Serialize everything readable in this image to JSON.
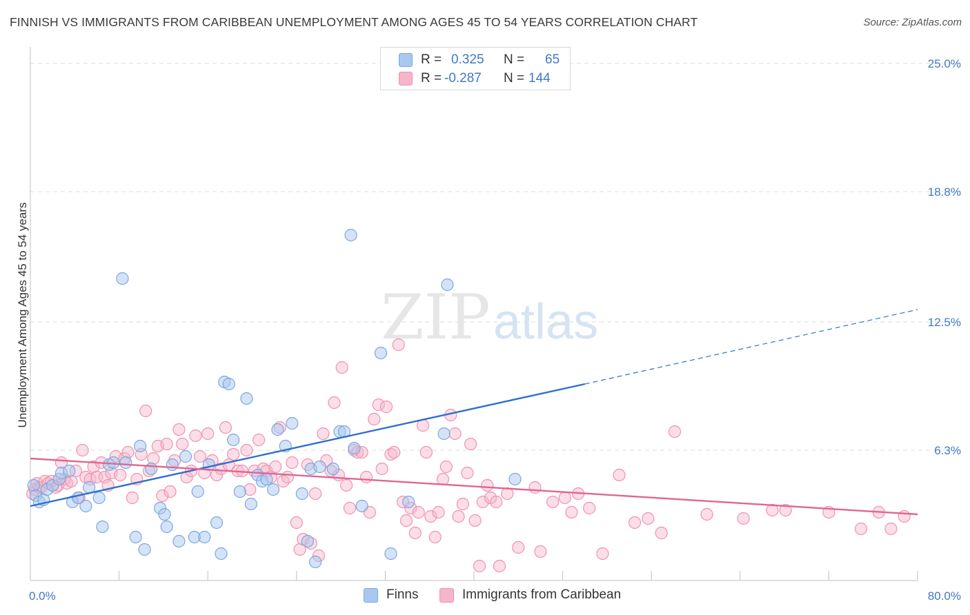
{
  "header": {
    "title": "FINNISH VS IMMIGRANTS FROM CARIBBEAN UNEMPLOYMENT AMONG AGES 45 TO 54 YEARS CORRELATION CHART",
    "source": "Source: ZipAtlas.com"
  },
  "legend": {
    "finns": {
      "r_label": "R =",
      "r_value": "0.325",
      "n_label": "N =",
      "n_value": "65"
    },
    "caribbean": {
      "r_label": "R =",
      "r_value": "-0.287",
      "n_label": "N =",
      "n_value": "144"
    }
  },
  "bottom_legend": {
    "finns": "Finns",
    "caribbean": "Immigrants from Caribbean"
  },
  "watermark": {
    "zip": "ZIP",
    "atlas": "atlas"
  },
  "colors": {
    "finns_fill": "#a9c8f0",
    "finns_stroke": "#7aa7df",
    "finns_line": "#2f6fce",
    "caribbean_fill": "#f6b6c9",
    "caribbean_stroke": "#ef91ae",
    "caribbean_line": "#e26492",
    "tick_text": "#3f78c9",
    "grid": "#dcdcdc"
  },
  "chart_data": {
    "type": "scatter",
    "title": "FINNISH VS IMMIGRANTS FROM CARIBBEAN UNEMPLOYMENT AMONG AGES 45 TO 54 YEARS CORRELATION CHART",
    "xlabel": "",
    "ylabel": "Unemployment Among Ages 45 to 54 years",
    "xlim": [
      0,
      80
    ],
    "ylim": [
      0,
      25.8
    ],
    "x_tick_labels": [
      "0.0%",
      "80.0%"
    ],
    "y_ticks": [
      6.3,
      12.5,
      18.8,
      25.0
    ],
    "y_tick_labels": [
      "6.3%",
      "12.5%",
      "18.8%",
      "25.0%"
    ],
    "grid": true,
    "legend_position": "top-center",
    "series": [
      {
        "name": "Finns",
        "r": 0.325,
        "n": 65,
        "trend": {
          "x0": 0,
          "y0": 3.6,
          "x1": 50,
          "y1": 9.5,
          "dashed_to_x": 80,
          "dashed_to_y": 13.1
        },
        "points": [
          [
            0.3,
            4.6
          ],
          [
            0.5,
            4.1
          ],
          [
            0.8,
            3.8
          ],
          [
            1.2,
            3.9
          ],
          [
            1.5,
            4.4
          ],
          [
            2.0,
            4.6
          ],
          [
            2.6,
            4.9
          ],
          [
            2.8,
            5.2
          ],
          [
            3.5,
            5.3
          ],
          [
            3.8,
            3.8
          ],
          [
            4.3,
            4.0
          ],
          [
            5.0,
            3.6
          ],
          [
            5.3,
            4.5
          ],
          [
            6.2,
            4.0
          ],
          [
            6.5,
            2.6
          ],
          [
            7.1,
            5.6
          ],
          [
            7.5,
            5.7
          ],
          [
            8.3,
            14.6
          ],
          [
            8.6,
            5.7
          ],
          [
            9.5,
            2.1
          ],
          [
            9.9,
            6.5
          ],
          [
            10.3,
            1.5
          ],
          [
            10.9,
            5.4
          ],
          [
            11.7,
            3.5
          ],
          [
            12.1,
            3.2
          ],
          [
            12.3,
            2.6
          ],
          [
            12.8,
            5.6
          ],
          [
            13.4,
            1.9
          ],
          [
            14.0,
            6.0
          ],
          [
            14.8,
            2.1
          ],
          [
            15.1,
            4.3
          ],
          [
            15.7,
            2.1
          ],
          [
            16.1,
            5.6
          ],
          [
            16.8,
            2.8
          ],
          [
            17.2,
            1.3
          ],
          [
            17.5,
            9.6
          ],
          [
            17.9,
            9.5
          ],
          [
            18.3,
            6.8
          ],
          [
            18.9,
            4.3
          ],
          [
            19.5,
            8.8
          ],
          [
            19.9,
            3.7
          ],
          [
            20.5,
            5.1
          ],
          [
            20.9,
            4.8
          ],
          [
            21.3,
            4.9
          ],
          [
            21.9,
            4.4
          ],
          [
            22.3,
            7.3
          ],
          [
            23.0,
            6.5
          ],
          [
            23.6,
            7.6
          ],
          [
            24.5,
            4.2
          ],
          [
            25.0,
            1.9
          ],
          [
            25.3,
            5.4
          ],
          [
            25.7,
            0.9
          ],
          [
            26.1,
            5.5
          ],
          [
            27.3,
            5.4
          ],
          [
            27.9,
            7.2
          ],
          [
            28.3,
            7.2
          ],
          [
            28.9,
            16.7
          ],
          [
            29.2,
            6.4
          ],
          [
            29.9,
            3.6
          ],
          [
            31.6,
            11.0
          ],
          [
            32.5,
            1.3
          ],
          [
            34.1,
            3.8
          ],
          [
            37.3,
            7.1
          ],
          [
            37.6,
            14.3
          ],
          [
            43.7,
            4.9
          ]
        ]
      },
      {
        "name": "Immigrants from Caribbean",
        "r": -0.287,
        "n": 144,
        "trend": {
          "x0": 0,
          "y0": 5.9,
          "x1": 80,
          "y1": 3.2
        },
        "points": [
          [
            0.2,
            4.2
          ],
          [
            0.4,
            4.4
          ],
          [
            0.6,
            4.7
          ],
          [
            0.8,
            4.5
          ],
          [
            1.0,
            4.5
          ],
          [
            1.3,
            4.8
          ],
          [
            1.6,
            4.7
          ],
          [
            1.9,
            4.8
          ],
          [
            2.3,
            4.5
          ],
          [
            2.5,
            4.6
          ],
          [
            2.8,
            5.7
          ],
          [
            3.1,
            4.9
          ],
          [
            3.3,
            4.7
          ],
          [
            3.7,
            4.8
          ],
          [
            4.1,
            5.3
          ],
          [
            4.4,
            4.0
          ],
          [
            4.7,
            6.3
          ],
          [
            5.0,
            5.0
          ],
          [
            5.4,
            4.9
          ],
          [
            5.7,
            5.5
          ],
          [
            6.0,
            5.0
          ],
          [
            6.4,
            5.7
          ],
          [
            6.7,
            5.0
          ],
          [
            7.0,
            4.6
          ],
          [
            7.3,
            5.2
          ],
          [
            7.7,
            6.0
          ],
          [
            8.1,
            5.1
          ],
          [
            8.5,
            5.9
          ],
          [
            8.8,
            6.2
          ],
          [
            9.2,
            4.0
          ],
          [
            9.6,
            4.9
          ],
          [
            10.0,
            6.1
          ],
          [
            10.4,
            8.2
          ],
          [
            10.7,
            5.3
          ],
          [
            11.1,
            5.9
          ],
          [
            11.5,
            6.5
          ],
          [
            11.9,
            4.1
          ],
          [
            12.3,
            6.6
          ],
          [
            12.6,
            4.3
          ],
          [
            13.0,
            5.8
          ],
          [
            13.4,
            7.3
          ],
          [
            13.7,
            6.6
          ],
          [
            14.1,
            5.0
          ],
          [
            14.5,
            5.3
          ],
          [
            14.9,
            7.0
          ],
          [
            15.3,
            6.0
          ],
          [
            15.7,
            5.2
          ],
          [
            16.0,
            7.1
          ],
          [
            16.4,
            5.8
          ],
          [
            16.8,
            5.1
          ],
          [
            17.2,
            5.4
          ],
          [
            17.6,
            7.4
          ],
          [
            17.9,
            5.6
          ],
          [
            18.3,
            6.1
          ],
          [
            18.7,
            5.3
          ],
          [
            19.1,
            5.3
          ],
          [
            19.5,
            6.3
          ],
          [
            19.8,
            4.4
          ],
          [
            20.2,
            5.3
          ],
          [
            20.6,
            6.8
          ],
          [
            21.0,
            5.4
          ],
          [
            21.3,
            5.3
          ],
          [
            21.7,
            5.0
          ],
          [
            22.1,
            5.5
          ],
          [
            22.5,
            7.4
          ],
          [
            22.8,
            4.8
          ],
          [
            23.2,
            5.0
          ],
          [
            23.6,
            5.7
          ],
          [
            24.0,
            2.8
          ],
          [
            24.3,
            1.5
          ],
          [
            24.6,
            2.0
          ],
          [
            25.0,
            5.6
          ],
          [
            25.3,
            1.8
          ],
          [
            25.7,
            4.2
          ],
          [
            26.0,
            1.2
          ],
          [
            26.4,
            7.1
          ],
          [
            26.7,
            5.8
          ],
          [
            27.1,
            5.3
          ],
          [
            27.4,
            8.6
          ],
          [
            27.8,
            5.1
          ],
          [
            28.1,
            10.3
          ],
          [
            28.5,
            4.6
          ],
          [
            28.8,
            3.5
          ],
          [
            29.2,
            6.3
          ],
          [
            29.5,
            6.2
          ],
          [
            29.9,
            6.2
          ],
          [
            30.3,
            5.0
          ],
          [
            30.6,
            3.3
          ],
          [
            31.0,
            7.8
          ],
          [
            31.4,
            8.5
          ],
          [
            31.7,
            5.4
          ],
          [
            32.1,
            8.4
          ],
          [
            32.5,
            6.1
          ],
          [
            32.8,
            6.2
          ],
          [
            33.2,
            11.4
          ],
          [
            33.6,
            3.8
          ],
          [
            33.9,
            2.9
          ],
          [
            34.3,
            3.5
          ],
          [
            34.7,
            2.3
          ],
          [
            35.0,
            3.3
          ],
          [
            35.4,
            7.5
          ],
          [
            35.7,
            6.2
          ],
          [
            36.1,
            3.1
          ],
          [
            36.5,
            2.1
          ],
          [
            36.8,
            3.3
          ],
          [
            37.2,
            4.9
          ],
          [
            37.5,
            5.5
          ],
          [
            37.9,
            8.0
          ],
          [
            38.3,
            7.1
          ],
          [
            38.6,
            3.1
          ],
          [
            39.0,
            3.7
          ],
          [
            39.4,
            5.2
          ],
          [
            39.7,
            6.6
          ],
          [
            40.1,
            2.9
          ],
          [
            40.5,
            0.7
          ],
          [
            40.8,
            3.8
          ],
          [
            41.2,
            4.6
          ],
          [
            41.5,
            4.0
          ],
          [
            42.0,
            3.8
          ],
          [
            42.3,
            0.7
          ],
          [
            43.0,
            4.2
          ],
          [
            44.0,
            1.6
          ],
          [
            45.5,
            4.5
          ],
          [
            46.0,
            1.4
          ],
          [
            47.1,
            3.8
          ],
          [
            48.2,
            4.0
          ],
          [
            48.8,
            3.3
          ],
          [
            49.4,
            4.2
          ],
          [
            50.4,
            3.5
          ],
          [
            51.6,
            1.3
          ],
          [
            53.1,
            5.1
          ],
          [
            54.5,
            2.8
          ],
          [
            55.7,
            3.0
          ],
          [
            56.9,
            2.3
          ],
          [
            58.1,
            7.2
          ],
          [
            61.0,
            3.2
          ],
          [
            64.3,
            3.0
          ],
          [
            66.9,
            3.4
          ],
          [
            68.1,
            3.4
          ],
          [
            72.0,
            3.3
          ],
          [
            74.9,
            2.5
          ],
          [
            76.5,
            3.3
          ],
          [
            77.6,
            2.5
          ],
          [
            78.8,
            3.1
          ]
        ]
      }
    ]
  }
}
